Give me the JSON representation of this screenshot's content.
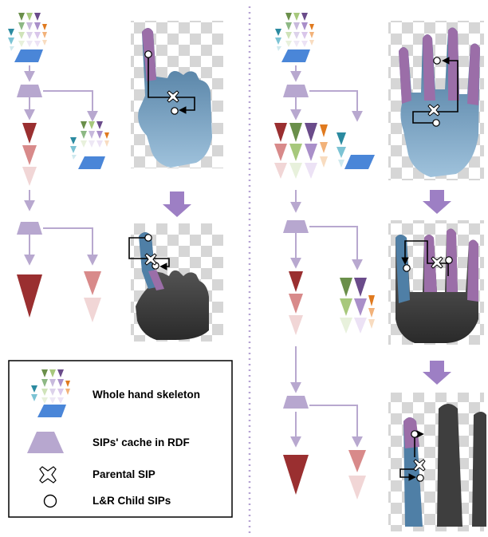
{
  "legend": {
    "whole_hand_skeleton": "Whole hand skeleton",
    "sips_cache_in_rdf": "SIPs' cache in RDF",
    "parental_sip": "Parental SIP",
    "lr_child_sips": "L&R Child SIPs"
  },
  "colors": {
    "flow_arrow": "#b8a8cf",
    "cache_trapezoid": "#b7a7cf",
    "big_arrow": "#9d7fc4",
    "separator": "#b6a3d3",
    "finger_purple": "#9b6ea8",
    "palm_blue": "#4f7fa6",
    "depth_gray": "#4a4a4a",
    "dark_red": "#9a2f30",
    "mid_red": "#d88a8a",
    "light_red": "#f1d6d6",
    "tri_blue_dark": "#2b8aa0",
    "tri_green": "#a7c87c",
    "tri_purple": "#6a4b8a",
    "tri_orange": "#e07a1f",
    "parallelogram": "#4a86d8"
  }
}
